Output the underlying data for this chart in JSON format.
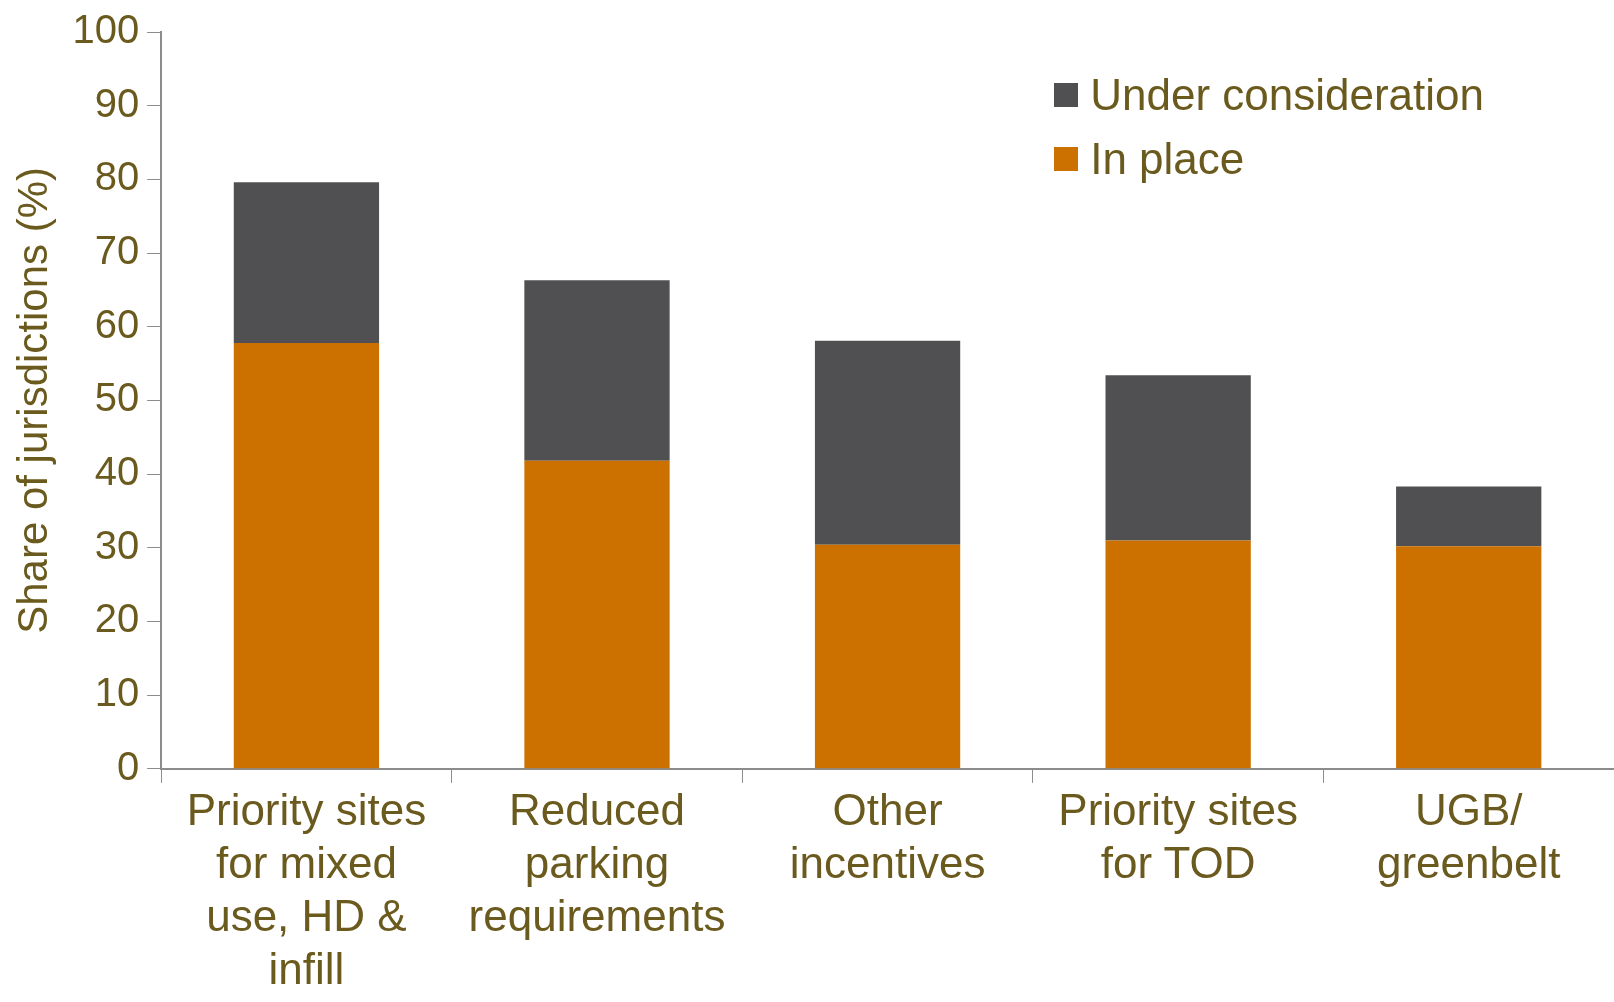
{
  "chart_data": {
    "type": "bar",
    "stacked": true,
    "ylabel": "Share of jurisdictions (%)",
    "categories": [
      "Priority sites for mixed use, HD & infill",
      "Reduced parking requirements",
      "Other incentives",
      "Priority sites for TOD",
      "UGB/ greenbelt"
    ],
    "series": [
      {
        "name": "In place",
        "color": "#cc7000",
        "values": [
          57.8,
          41.8,
          30.4,
          31.0,
          30.2
        ]
      },
      {
        "name": "Under consideration",
        "color": "#505052",
        "values": [
          21.8,
          24.5,
          27.7,
          22.4,
          8.1
        ]
      }
    ],
    "ylim": [
      0,
      100
    ],
    "yticks": [
      0,
      10,
      20,
      30,
      40,
      50,
      60,
      70,
      80,
      90,
      100
    ],
    "legend": "top right"
  }
}
